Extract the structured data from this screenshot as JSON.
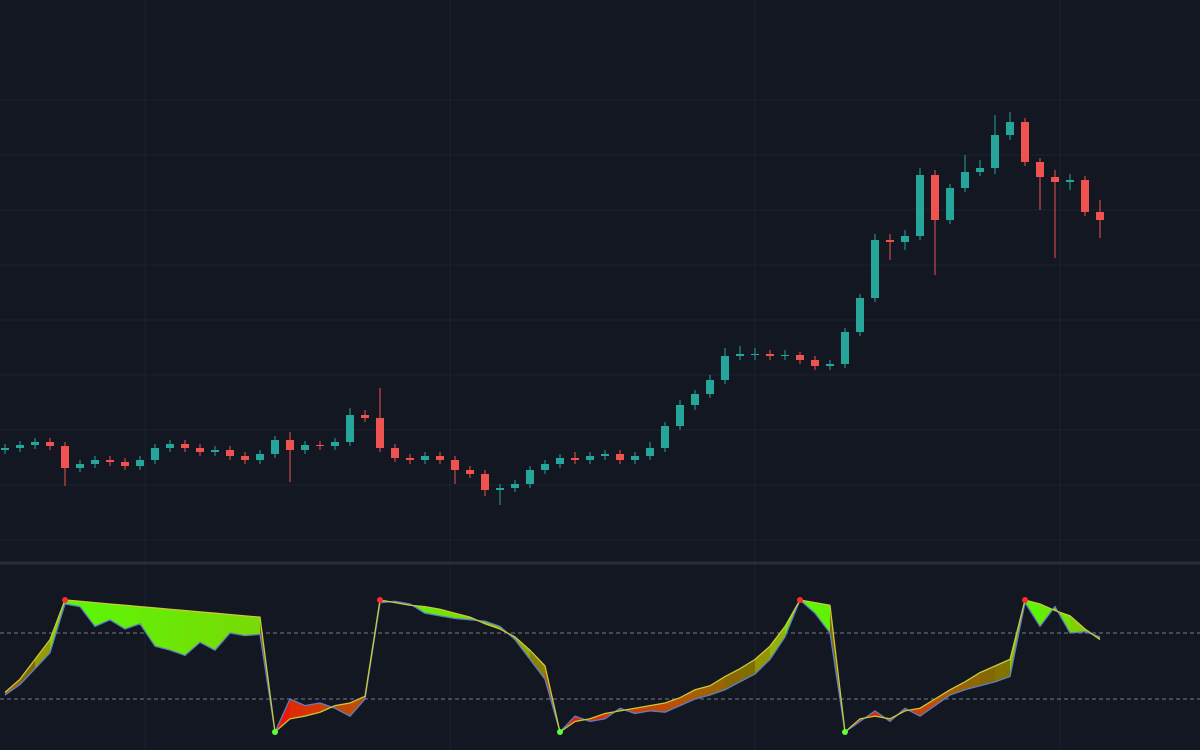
{
  "chart_data": [
    {
      "type": "candlestick",
      "up_color": "#26a69a",
      "down_color": "#ef5350",
      "ylim": [
        0,
        560
      ],
      "open": [
        110,
        112,
        115,
        118,
        114,
        92,
        96,
        100,
        98,
        94,
        100,
        112,
        116,
        112,
        108,
        110,
        104,
        100,
        106,
        120,
        110,
        115,
        114,
        118,
        145,
        142,
        112,
        102,
        100,
        104,
        100,
        90,
        86,
        70,
        72,
        76,
        90,
        96,
        102,
        100,
        104,
        106,
        100,
        104,
        112,
        134,
        155,
        166,
        180,
        204,
        206,
        206,
        204,
        205,
        200,
        194,
        196,
        228,
        262,
        320,
        318,
        324,
        385,
        340,
        372,
        388,
        392,
        425,
        438,
        398,
        383,
        378,
        380,
        348
      ],
      "high": [
        116,
        119,
        122,
        122,
        118,
        100,
        104,
        104,
        102,
        104,
        116,
        120,
        120,
        116,
        114,
        114,
        108,
        110,
        124,
        128,
        119,
        119,
        122,
        152,
        150,
        172,
        116,
        106,
        108,
        108,
        104,
        94,
        90,
        76,
        80,
        94,
        100,
        106,
        108,
        108,
        110,
        110,
        108,
        118,
        138,
        160,
        170,
        185,
        212,
        214,
        212,
        210,
        210,
        208,
        204,
        200,
        232,
        266,
        326,
        326,
        330,
        392,
        390,
        376,
        405,
        400,
        445,
        448,
        442,
        402,
        390,
        386,
        384,
        360
      ],
      "low": [
        106,
        108,
        111,
        110,
        74,
        88,
        92,
        94,
        90,
        90,
        96,
        108,
        108,
        104,
        104,
        100,
        96,
        96,
        102,
        78,
        106,
        110,
        110,
        114,
        138,
        108,
        98,
        96,
        96,
        96,
        76,
        82,
        64,
        55,
        68,
        72,
        86,
        92,
        96,
        96,
        100,
        96,
        96,
        100,
        108,
        130,
        150,
        162,
        176,
        200,
        200,
        200,
        200,
        196,
        190,
        190,
        192,
        224,
        258,
        300,
        310,
        320,
        285,
        336,
        368,
        384,
        386,
        420,
        394,
        350,
        302,
        370,
        344,
        322
      ],
      "close": [
        112,
        115,
        118,
        114,
        92,
        96,
        100,
        98,
        94,
        100,
        112,
        116,
        112,
        108,
        110,
        104,
        100,
        106,
        120,
        110,
        115,
        114,
        118,
        145,
        142,
        112,
        102,
        100,
        104,
        100,
        90,
        86,
        70,
        72,
        76,
        90,
        96,
        102,
        100,
        104,
        106,
        100,
        104,
        112,
        134,
        155,
        166,
        180,
        204,
        206,
        206,
        204,
        205,
        200,
        194,
        196,
        228,
        262,
        320,
        318,
        324,
        385,
        340,
        372,
        388,
        392,
        425,
        438,
        398,
        383,
        378,
        380,
        348,
        340
      ]
    },
    {
      "type": "oscillator",
      "ylim": [
        0,
        100
      ],
      "levels": [
        75,
        25
      ],
      "series": [
        {
          "color": "#c9c93a",
          "values": [
            30,
            40,
            55,
            70,
            100,
            99,
            98,
            97,
            96,
            95,
            94,
            93,
            92,
            91,
            90,
            89,
            88,
            87,
            0,
            10,
            12,
            15,
            20,
            22,
            27,
            100,
            98,
            96,
            95,
            93,
            90,
            87,
            82,
            78,
            72,
            62,
            50,
            0,
            8,
            10,
            14,
            16,
            18,
            20,
            22,
            26,
            32,
            35,
            42,
            48,
            55,
            65,
            80,
            100,
            98,
            96,
            0,
            10,
            12,
            10,
            16,
            18,
            25,
            32,
            38,
            45,
            50,
            55,
            100,
            97,
            92,
            88,
            78,
            70
          ]
        },
        {
          "color": "#5b7fc4",
          "values": [
            28,
            36,
            48,
            60,
            97,
            95,
            80,
            85,
            78,
            82,
            65,
            62,
            58,
            68,
            62,
            75,
            73,
            74,
            0,
            25,
            20,
            22,
            18,
            12,
            25,
            98,
            99,
            97,
            90,
            88,
            86,
            85,
            84,
            80,
            70,
            55,
            40,
            0,
            12,
            8,
            10,
            18,
            14,
            16,
            15,
            20,
            25,
            28,
            32,
            38,
            44,
            55,
            72,
            100,
            90,
            75,
            0,
            8,
            16,
            8,
            18,
            12,
            20,
            28,
            32,
            35,
            38,
            42,
            98,
            80,
            95,
            75,
            76,
            72
          ]
        }
      ]
    }
  ]
}
